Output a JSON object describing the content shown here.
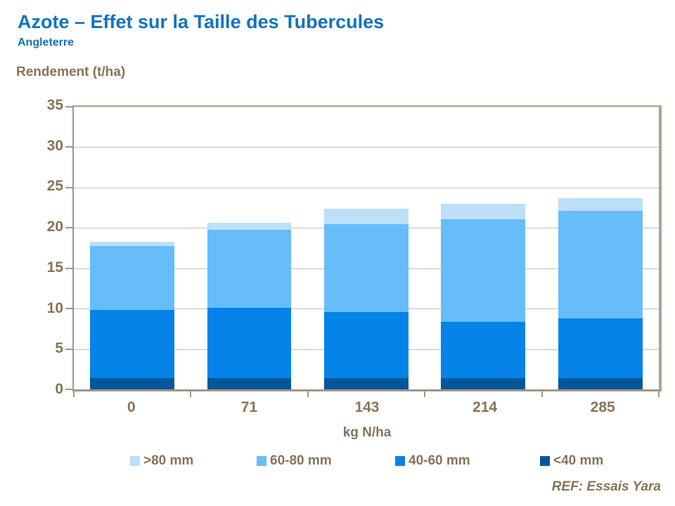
{
  "title": "Azote – Effet sur la Taille des Tubercules",
  "subtitle": "Angleterre",
  "footer": "REF: Essais Yara",
  "colors": {
    "brand_blue": "#1273BE",
    "text_brown": "#877359",
    "axis": "#A49586",
    "gridline": "#C8BDB0"
  },
  "chart_data": {
    "type": "bar",
    "stacked": true,
    "title": "Azote – Effet sur la Taille des Tubercules",
    "subtitle": "Angleterre",
    "xlabel": "kg N/ha",
    "ylabel": "Rendement (t/ha)",
    "categories": [
      "0",
      "71",
      "143",
      "214",
      "285"
    ],
    "ylim": [
      0,
      35
    ],
    "ytick_step": 5,
    "grid": true,
    "legend_position": "bottom",
    "series": [
      {
        "name": "<40 mm",
        "color": "#02569B",
        "values": [
          1.4,
          1.4,
          1.4,
          1.4,
          1.4
        ]
      },
      {
        "name": "40-60 mm",
        "color": "#0583E8",
        "values": [
          8.4,
          8.7,
          8.2,
          7.0,
          7.4
        ]
      },
      {
        "name": "60-80 mm",
        "color": "#66BDFA",
        "values": [
          8.0,
          9.7,
          10.9,
          12.7,
          13.3
        ]
      },
      {
        "name": ">80 mm",
        "color": "#BDDFF8",
        "values": [
          0.5,
          0.8,
          1.9,
          1.9,
          1.6
        ]
      }
    ],
    "stack_totals": [
      18.3,
      20.6,
      22.4,
      23.0,
      23.7
    ],
    "legend_order": [
      ">80 mm",
      "60-80 mm",
      "40-60 mm",
      "<40 mm"
    ]
  }
}
